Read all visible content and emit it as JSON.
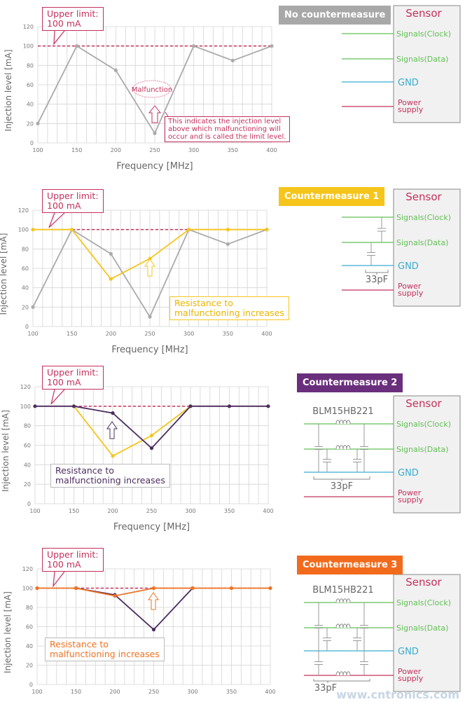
{
  "colors": {
    "limit": "#c4305c",
    "gray": "#aaaaaa",
    "yellow": "#f5c51c",
    "purple": "#4b2d5e",
    "orange": "#ef7322",
    "signal": "#62bf55",
    "gnd": "#39acd0",
    "power": "#c4305c",
    "sensor_text": "#c4305c"
  },
  "watermark": "www.cntronics.com",
  "chart_data": [
    {
      "type": "line",
      "title": "No countermeasure",
      "badge_color": "#a8a8a8",
      "xlabel": "Frequency  [MHz]",
      "ylabel": "Injection level [mA]",
      "x": [
        100,
        150,
        200,
        250,
        300,
        350,
        400
      ],
      "xlim": [
        100,
        400
      ],
      "ylim": [
        0,
        120
      ],
      "yticks": [
        0,
        20,
        40,
        60,
        80,
        100,
        120
      ],
      "grid": true,
      "limit_level": 100,
      "series": [
        {
          "color": "#aaaaaa",
          "x": [
            100,
            150,
            200,
            250,
            300,
            350,
            400
          ],
          "values": [
            20,
            100,
            75,
            10,
            100,
            85,
            100
          ]
        }
      ],
      "annotations": [
        "Upper limit:\n100 mA",
        "Malfunction",
        "This indicates the injection level\nabove which malfunctioning will\noccur and is called the limit level."
      ]
    },
    {
      "type": "line",
      "title": "Countermeasure 1",
      "badge_color": "#f5c51c",
      "xlabel": "Frequency  [MHz]",
      "ylabel": "Injection level [mA]",
      "x": [
        100,
        150,
        200,
        250,
        300,
        350,
        400
      ],
      "xlim": [
        100,
        400
      ],
      "ylim": [
        0,
        120
      ],
      "yticks": [
        0,
        20,
        40,
        60,
        80,
        100,
        120
      ],
      "grid": true,
      "limit_level": 100,
      "series": [
        {
          "color": "#aaaaaa",
          "x": [
            100,
            150,
            200,
            250,
            300,
            350,
            400
          ],
          "values": [
            20,
            100,
            75,
            10,
            100,
            85,
            100
          ]
        },
        {
          "color": "#f5c51c",
          "x": [
            100,
            150,
            200,
            250,
            300,
            350,
            400
          ],
          "values": [
            100,
            100,
            49,
            70,
            100,
            100,
            100
          ]
        }
      ],
      "annotations": [
        "Upper limit:\n100 mA",
        "Resistance to\nmalfunctioning increases"
      ]
    },
    {
      "type": "line",
      "title": "Countermeasure 2",
      "badge_color": "#6a2f7c",
      "xlabel": "Frequency  [MHz]",
      "ylabel": "Injection level [mA]",
      "x": [
        100,
        150,
        200,
        250,
        300,
        350,
        400
      ],
      "xlim": [
        100,
        400
      ],
      "ylim": [
        0,
        120
      ],
      "yticks": [
        0,
        20,
        40,
        60,
        80,
        100,
        120
      ],
      "grid": true,
      "limit_level": 100,
      "series": [
        {
          "color": "#f5c51c",
          "x": [
            150,
            200,
            250,
            300
          ],
          "values": [
            100,
            49,
            70,
            100
          ]
        },
        {
          "color": "#4b2d5e",
          "x": [
            100,
            150,
            200,
            250,
            300,
            350,
            400
          ],
          "values": [
            100,
            100,
            93,
            57,
            100,
            100,
            100
          ]
        }
      ],
      "annotations": [
        "Upper limit:\n100 mA",
        "Resistance to\nmalfunctioning increases"
      ]
    },
    {
      "type": "line",
      "title": "Countermeasure 3",
      "badge_color": "#f26b1d",
      "xlabel": "",
      "ylabel": "Injection level [mA]",
      "x": [
        100,
        150,
        200,
        250,
        300,
        350,
        400
      ],
      "xlim": [
        100,
        400
      ],
      "ylim": [
        0,
        120
      ],
      "yticks": [
        0,
        20,
        40,
        60,
        80,
        100,
        120
      ],
      "grid": true,
      "limit_level": 100,
      "series": [
        {
          "color": "#4b2d5e",
          "x": [
            150,
            200,
            250,
            300
          ],
          "values": [
            100,
            93,
            57,
            100
          ]
        },
        {
          "color": "#ef7322",
          "x": [
            100,
            150,
            200,
            250,
            300,
            350,
            400
          ],
          "values": [
            100,
            100,
            92,
            100,
            100,
            100,
            100
          ]
        }
      ],
      "annotations": [
        "Upper limit:\n100 mA",
        "Resistance to\nmalfunctioning increases"
      ]
    }
  ],
  "circuits": [
    {
      "sensor": "Sensor",
      "clock": "Signals(Clock)",
      "data": "Signals(Data)",
      "gnd": "GND",
      "power": "Power\nsupply",
      "cap": "",
      "part": ""
    },
    {
      "sensor": "Sensor",
      "clock": "Signals(Clock)",
      "data": "Signals(Data)",
      "gnd": "GND",
      "power": "Power\nsupply",
      "cap": "33pF",
      "part": ""
    },
    {
      "sensor": "Sensor",
      "clock": "Signals(Clock)",
      "data": "Signals(Data)",
      "gnd": "GND",
      "power": "Power\nsupply",
      "cap": "33pF",
      "part": "BLM15HB221"
    },
    {
      "sensor": "Sensor",
      "clock": "Signals(Clock)",
      "data": "Signals(Data)",
      "gnd": "GND",
      "power": "Power\nsupply",
      "cap": "33pF",
      "part": "BLM15HB221"
    }
  ]
}
